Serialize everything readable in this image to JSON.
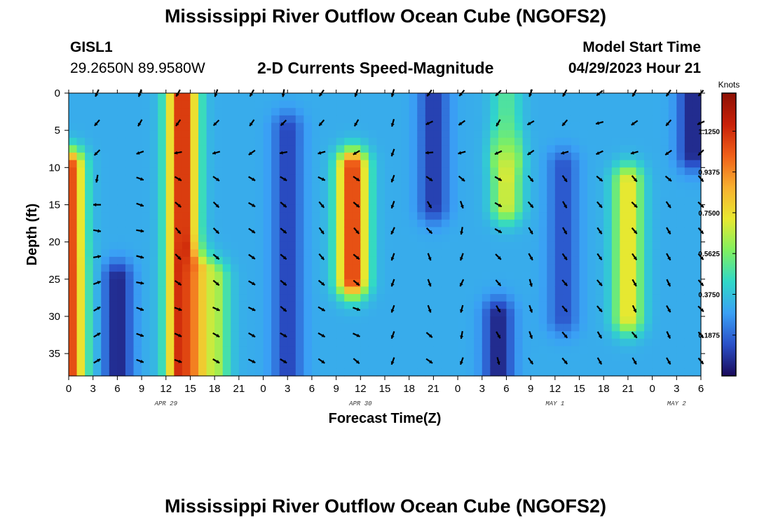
{
  "page": {
    "title": "Mississippi River Outflow Ocean Cube (NGOFS2)",
    "station_id": "GISL1",
    "station_coords": "29.2650N  89.9580W",
    "subtitle": "2-D Currents Speed-Magnitude",
    "model_start_label": "Model Start Time",
    "model_start_value": "04/29/2023 Hour 21",
    "footer_title": "Mississippi River Outflow Ocean Cube (NGOFS2)"
  },
  "chart_data": {
    "type": "heatmap",
    "title": "2-D Currents Speed-Magnitude",
    "xlabel": "Forecast Time(Z)",
    "ylabel": "Depth (ft)",
    "xlim": [
      0,
      78
    ],
    "ylim": [
      0,
      38
    ],
    "x_tick_hours": [
      0,
      3,
      6,
      9,
      12,
      15,
      18,
      21,
      24,
      27,
      30,
      33,
      36,
      39,
      42,
      45,
      48,
      51,
      54,
      57,
      60,
      63,
      66,
      69,
      72,
      75,
      78
    ],
    "x_tick_labels": [
      "0",
      "3",
      "6",
      "9",
      "12",
      "15",
      "18",
      "21",
      "0",
      "3",
      "6",
      "9",
      "12",
      "15",
      "18",
      "21",
      "0",
      "3",
      "6",
      "9",
      "12",
      "15",
      "18",
      "21",
      "0",
      "3",
      "6"
    ],
    "y_ticks": [
      0,
      5,
      10,
      15,
      20,
      25,
      30,
      35
    ],
    "date_labels": [
      {
        "hour": 12,
        "label": "APR 29"
      },
      {
        "hour": 36,
        "label": "APR 30"
      },
      {
        "hour": 60,
        "label": "MAY 1"
      },
      {
        "hour": 75,
        "label": "MAY 2"
      }
    ],
    "colorbar": {
      "unit": "Knots",
      "min": 0,
      "max": 1.3,
      "ticks": [
        0.1875,
        0.375,
        0.5625,
        0.75,
        0.9375,
        1.125
      ],
      "tick_labels": [
        "0.1875",
        "0.3750",
        "0.5625",
        "0.7500",
        "0.9375",
        "1.1250"
      ],
      "colormap": [
        "#1a0a5a",
        "#2a50c8",
        "#3aa0f5",
        "#30d8c8",
        "#80f060",
        "#e8e830",
        "#f8b030",
        "#f06018",
        "#c82008",
        "#8c1004"
      ]
    },
    "speed_features_knots": [
      {
        "hour": 0,
        "depth_range": [
          10,
          38
        ],
        "speed": 1.1
      },
      {
        "hour": 6,
        "depth_range": [
          25,
          38
        ],
        "speed": 0.05
      },
      {
        "hour": 14,
        "depth_range": [
          0,
          38
        ],
        "speed": 1.15
      },
      {
        "hour": 18,
        "depth_range": [
          25,
          38
        ],
        "speed": 0.6
      },
      {
        "hour": 27,
        "depth_range": [
          5,
          38
        ],
        "speed": 0.12
      },
      {
        "hour": 35,
        "depth_range": [
          10,
          25
        ],
        "speed": 1.1
      },
      {
        "hour": 45,
        "depth_range": [
          0,
          15
        ],
        "speed": 0.1
      },
      {
        "hour": 54,
        "depth_range": [
          0,
          5
        ],
        "speed": 0.5
      },
      {
        "hour": 54,
        "depth_range": [
          10,
          15
        ],
        "speed": 0.7
      },
      {
        "hour": 53,
        "depth_range": [
          30,
          38
        ],
        "speed": 0.05
      },
      {
        "hour": 61,
        "depth_range": [
          10,
          30
        ],
        "speed": 0.15
      },
      {
        "hour": 69,
        "depth_range": [
          12,
          30
        ],
        "speed": 0.75
      },
      {
        "hour": 77,
        "depth_range": [
          0,
          8
        ],
        "speed": 0.05
      }
    ],
    "vector_time_hours": [
      3.5,
      8.8,
      13.5,
      18.2,
      22.6,
      26.5,
      31.2,
      35.5,
      40.0,
      44.5,
      48.5,
      53.0,
      57.0,
      61.2,
      65.5,
      69.8,
      74.0,
      78.0
    ],
    "vector_depths_ft": [
      0,
      4,
      8,
      11.5,
      15,
      18.5,
      22,
      25.5,
      29,
      32.5,
      36
    ],
    "vector_directions_deg": [
      [
        205,
        220,
        225,
        190,
        270,
        100,
        80,
        70,
        60,
        60,
        60
      ],
      [
        200,
        210,
        250,
        110,
        110,
        100,
        105,
        100,
        110,
        110,
        110
      ],
      [
        210,
        215,
        260,
        120,
        130,
        140,
        135,
        125,
        110,
        115,
        110
      ],
      [
        200,
        225,
        255,
        125,
        135,
        135,
        130,
        130,
        115,
        120,
        120
      ],
      [
        210,
        215,
        235,
        120,
        120,
        125,
        125,
        120,
        115,
        120,
        115
      ],
      [
        190,
        225,
        260,
        120,
        130,
        130,
        130,
        130,
        130,
        120,
        120
      ],
      [
        215,
        220,
        255,
        115,
        140,
        145,
        140,
        130,
        120,
        120,
        125
      ],
      [
        200,
        210,
        240,
        125,
        130,
        140,
        130,
        130,
        110,
        115,
        130
      ],
      [
        195,
        195,
        200,
        200,
        200,
        205,
        200,
        200,
        200,
        200,
        200
      ],
      [
        215,
        245,
        265,
        125,
        150,
        135,
        160,
        160,
        160,
        130,
        125
      ],
      [
        220,
        235,
        255,
        130,
        160,
        190,
        200,
        205,
        195,
        190,
        200
      ],
      [
        225,
        210,
        245,
        120,
        120,
        120,
        135,
        140,
        150,
        150,
        165
      ],
      [
        200,
        240,
        235,
        140,
        140,
        150,
        150,
        165,
        160,
        160,
        145
      ],
      [
        210,
        220,
        255,
        145,
        150,
        150,
        145,
        140,
        140,
        140,
        140
      ],
      [
        230,
        255,
        245,
        130,
        140,
        145,
        145,
        140,
        140,
        150,
        150
      ],
      [
        210,
        235,
        255,
        140,
        135,
        140,
        145,
        150,
        155,
        140,
        150
      ],
      [
        215,
        220,
        235,
        130,
        145,
        150,
        150,
        155,
        150,
        155,
        150
      ],
      [
        220,
        245,
        225,
        140,
        135,
        140,
        140,
        140,
        135,
        140,
        140
      ]
    ]
  }
}
